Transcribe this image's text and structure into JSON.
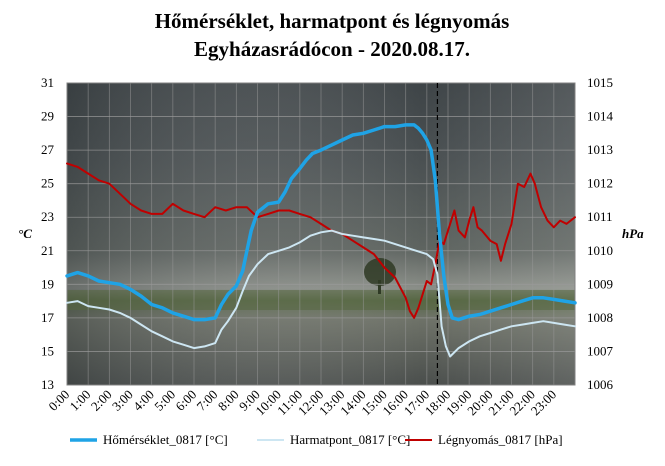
{
  "chart_data": {
    "type": "line",
    "title_line1": "Hőmérséklet, harmatpont és légnyomás",
    "title_line2": "Egyházasrádócon - 2020.08.17.",
    "left_axis": {
      "label": "°C",
      "ylim": [
        13,
        31
      ],
      "ticks": [
        "13",
        "15",
        "17",
        "19",
        "21",
        "23",
        "25",
        "27",
        "29",
        "31"
      ]
    },
    "right_axis": {
      "label": "hPa",
      "ylim": [
        1006,
        1015
      ],
      "ticks": [
        "1006",
        "1007",
        "1008",
        "1009",
        "1010",
        "1011",
        "1012",
        "1013",
        "1014",
        "1015"
      ]
    },
    "x_categories": [
      "0:00",
      "1:00",
      "2:00",
      "3:00",
      "4:00",
      "5:00",
      "6:00",
      "7:00",
      "8:00",
      "9:00",
      "10:00",
      "11:00",
      "12:00",
      "13:00",
      "14:00",
      "15:00",
      "16:00",
      "17:00",
      "18:00",
      "19:00",
      "20:00",
      "21:00",
      "22:00",
      "23:00"
    ],
    "xlim": [
      0,
      24
    ],
    "event_marker_time": 17.5,
    "legend_position": "bottom",
    "series": [
      {
        "name": "Hőmérséklet_0817 [°C]",
        "axis": "left",
        "color": "#1fa3e6",
        "width": 3.5,
        "points": [
          [
            0,
            19.5
          ],
          [
            0.5,
            19.7
          ],
          [
            1,
            19.5
          ],
          [
            1.5,
            19.2
          ],
          [
            2,
            19.1
          ],
          [
            2.5,
            19.0
          ],
          [
            3,
            18.7
          ],
          [
            3.5,
            18.3
          ],
          [
            4,
            17.8
          ],
          [
            4.5,
            17.6
          ],
          [
            5,
            17.3
          ],
          [
            5.5,
            17.1
          ],
          [
            6,
            16.9
          ],
          [
            6.5,
            16.9
          ],
          [
            7,
            17.0
          ],
          [
            7.3,
            17.8
          ],
          [
            7.6,
            18.4
          ],
          [
            8,
            18.9
          ],
          [
            8.3,
            19.8
          ],
          [
            8.5,
            21.0
          ],
          [
            8.7,
            22.2
          ],
          [
            9,
            23.3
          ],
          [
            9.5,
            23.8
          ],
          [
            10,
            23.9
          ],
          [
            10.3,
            24.5
          ],
          [
            10.6,
            25.3
          ],
          [
            11,
            25.9
          ],
          [
            11.3,
            26.4
          ],
          [
            11.6,
            26.8
          ],
          [
            12,
            27.0
          ],
          [
            12.5,
            27.3
          ],
          [
            13,
            27.6
          ],
          [
            13.5,
            27.9
          ],
          [
            14,
            28.0
          ],
          [
            14.5,
            28.2
          ],
          [
            15,
            28.4
          ],
          [
            15.5,
            28.4
          ],
          [
            16,
            28.5
          ],
          [
            16.4,
            28.5
          ],
          [
            16.6,
            28.3
          ],
          [
            16.8,
            28.0
          ],
          [
            17,
            27.6
          ],
          [
            17.2,
            27.0
          ],
          [
            17.4,
            25.2
          ],
          [
            17.6,
            22.0
          ],
          [
            17.8,
            19.5
          ],
          [
            18,
            17.8
          ],
          [
            18.2,
            17.0
          ],
          [
            18.5,
            16.9
          ],
          [
            19,
            17.1
          ],
          [
            19.5,
            17.2
          ],
          [
            20,
            17.4
          ],
          [
            20.5,
            17.6
          ],
          [
            21,
            17.8
          ],
          [
            21.5,
            18.0
          ],
          [
            22,
            18.2
          ],
          [
            22.5,
            18.2
          ],
          [
            23,
            18.1
          ],
          [
            23.5,
            18.0
          ],
          [
            24,
            17.9
          ]
        ]
      },
      {
        "name": "Harmatpont_0817 [°C]",
        "axis": "left",
        "color": "#cde6f2",
        "width": 2,
        "points": [
          [
            0,
            17.9
          ],
          [
            0.5,
            18.0
          ],
          [
            1,
            17.7
          ],
          [
            1.5,
            17.6
          ],
          [
            2,
            17.5
          ],
          [
            2.5,
            17.3
          ],
          [
            3,
            17.0
          ],
          [
            3.5,
            16.6
          ],
          [
            4,
            16.2
          ],
          [
            4.5,
            15.9
          ],
          [
            5,
            15.6
          ],
          [
            5.5,
            15.4
          ],
          [
            6,
            15.2
          ],
          [
            6.5,
            15.3
          ],
          [
            7,
            15.5
          ],
          [
            7.3,
            16.3
          ],
          [
            7.6,
            16.8
          ],
          [
            8,
            17.6
          ],
          [
            8.3,
            18.6
          ],
          [
            8.6,
            19.5
          ],
          [
            9,
            20.2
          ],
          [
            9.5,
            20.8
          ],
          [
            10,
            21.0
          ],
          [
            10.5,
            21.2
          ],
          [
            11,
            21.5
          ],
          [
            11.5,
            21.9
          ],
          [
            12,
            22.1
          ],
          [
            12.5,
            22.2
          ],
          [
            13,
            22.0
          ],
          [
            13.5,
            21.9
          ],
          [
            14,
            21.8
          ],
          [
            14.5,
            21.7
          ],
          [
            15,
            21.6
          ],
          [
            15.5,
            21.4
          ],
          [
            16,
            21.2
          ],
          [
            16.5,
            21.0
          ],
          [
            17,
            20.8
          ],
          [
            17.3,
            20.5
          ],
          [
            17.5,
            19.6
          ],
          [
            17.7,
            16.5
          ],
          [
            17.9,
            15.3
          ],
          [
            18.1,
            14.7
          ],
          [
            18.5,
            15.2
          ],
          [
            19,
            15.6
          ],
          [
            19.5,
            15.9
          ],
          [
            20,
            16.1
          ],
          [
            20.5,
            16.3
          ],
          [
            21,
            16.5
          ],
          [
            21.5,
            16.6
          ],
          [
            22,
            16.7
          ],
          [
            22.5,
            16.8
          ],
          [
            23,
            16.7
          ],
          [
            23.5,
            16.6
          ],
          [
            24,
            16.5
          ]
        ]
      },
      {
        "name": "Légnyomás_0817 [hPa]",
        "axis": "right",
        "color": "#c00000",
        "width": 2,
        "points": [
          [
            0,
            1012.6
          ],
          [
            0.5,
            1012.5
          ],
          [
            1,
            1012.3
          ],
          [
            1.5,
            1012.1
          ],
          [
            2,
            1012.0
          ],
          [
            2.5,
            1011.7
          ],
          [
            3,
            1011.4
          ],
          [
            3.5,
            1011.2
          ],
          [
            4,
            1011.1
          ],
          [
            4.5,
            1011.1
          ],
          [
            5,
            1011.4
          ],
          [
            5.5,
            1011.2
          ],
          [
            6,
            1011.1
          ],
          [
            6.5,
            1011.0
          ],
          [
            7,
            1011.3
          ],
          [
            7.5,
            1011.2
          ],
          [
            8,
            1011.3
          ],
          [
            8.5,
            1011.3
          ],
          [
            9,
            1011.0
          ],
          [
            9.5,
            1011.1
          ],
          [
            10,
            1011.2
          ],
          [
            10.5,
            1011.2
          ],
          [
            11,
            1011.1
          ],
          [
            11.5,
            1011.0
          ],
          [
            12,
            1010.8
          ],
          [
            12.5,
            1010.6
          ],
          [
            13,
            1010.5
          ],
          [
            13.5,
            1010.3
          ],
          [
            14,
            1010.1
          ],
          [
            14.5,
            1009.9
          ],
          [
            15,
            1009.5
          ],
          [
            15.5,
            1009.2
          ],
          [
            16,
            1008.6
          ],
          [
            16.2,
            1008.2
          ],
          [
            16.4,
            1008.0
          ],
          [
            16.6,
            1008.3
          ],
          [
            16.8,
            1008.7
          ],
          [
            17,
            1009.1
          ],
          [
            17.2,
            1009.0
          ],
          [
            17.4,
            1009.6
          ],
          [
            17.6,
            1010.3
          ],
          [
            17.8,
            1010.2
          ],
          [
            18,
            1010.6
          ],
          [
            18.3,
            1011.2
          ],
          [
            18.5,
            1010.6
          ],
          [
            18.8,
            1010.4
          ],
          [
            19,
            1010.9
          ],
          [
            19.2,
            1011.3
          ],
          [
            19.4,
            1010.7
          ],
          [
            19.6,
            1010.6
          ],
          [
            20,
            1010.3
          ],
          [
            20.3,
            1010.2
          ],
          [
            20.5,
            1009.7
          ],
          [
            20.7,
            1010.2
          ],
          [
            21,
            1010.8
          ],
          [
            21.3,
            1012.0
          ],
          [
            21.6,
            1011.9
          ],
          [
            21.9,
            1012.3
          ],
          [
            22.1,
            1012.0
          ],
          [
            22.4,
            1011.3
          ],
          [
            22.7,
            1010.9
          ],
          [
            23,
            1010.7
          ],
          [
            23.3,
            1010.9
          ],
          [
            23.6,
            1010.8
          ],
          [
            24,
            1011.0
          ]
        ]
      }
    ]
  }
}
